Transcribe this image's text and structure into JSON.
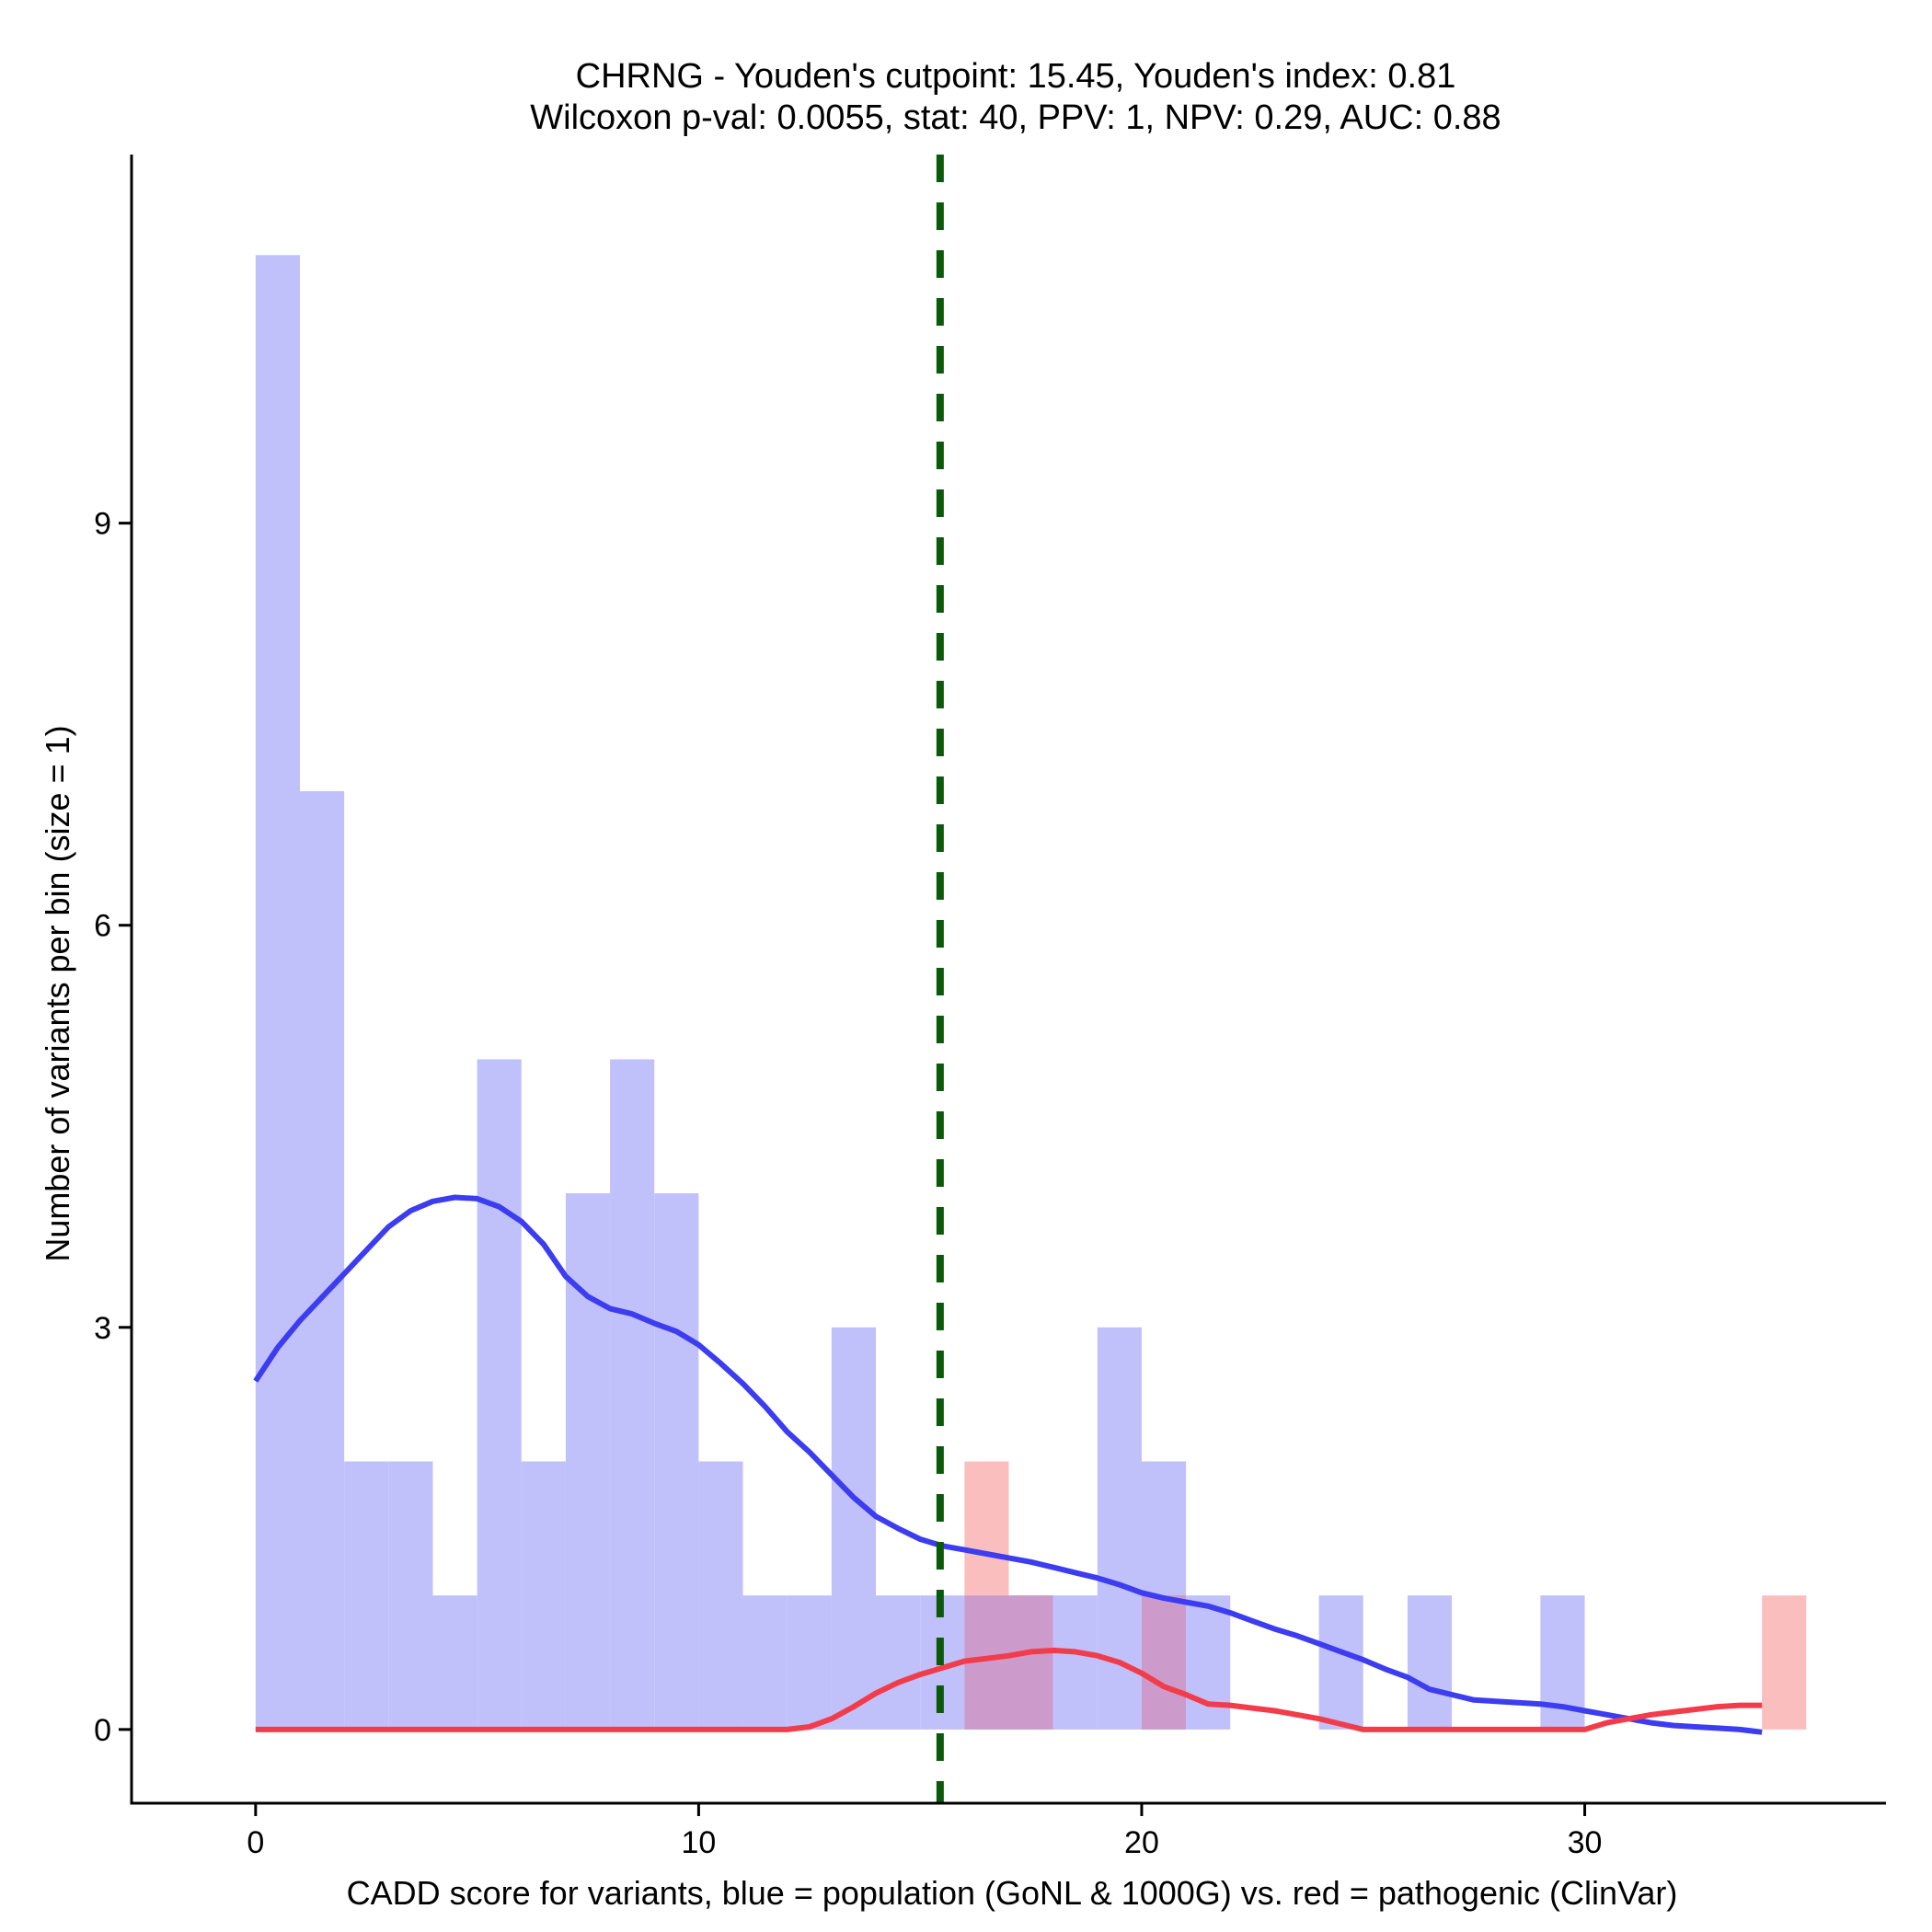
{
  "chart_data": {
    "type": "histogram",
    "title": "CHRNG - Youden's cutpoint: 15.45, Youden's index: 0.81",
    "subtitle": "Wilcoxon p-val: 0.0055, stat: 40, PPV: 1, NPV: 0.29, AUC: 0.88",
    "xlabel": "CADD score for variants, blue = population (GoNL & 1000G) vs. red = pathogenic (ClinVar)",
    "ylabel": "Number of variants per bin (size = 1)",
    "xlim": [
      -2.8,
      36.8
    ],
    "ylim": [
      -0.55,
      11.75
    ],
    "xticks": [
      0,
      10,
      20,
      30
    ],
    "yticks": [
      0,
      3,
      6,
      9
    ],
    "bin_size": 1,
    "cutpoint": 15.45,
    "colors": {
      "population_bar": "#c0c0fa",
      "pathogenic_bar": "#fbbebe",
      "overlap_bar": "#cc9acb",
      "population_line": "#3c3cf0",
      "pathogenic_line": "#f23c4a",
      "cutpoint_line": "#0b5a0b",
      "axis": "#000000"
    },
    "series": [
      {
        "name": "population (GoNL & 1000G)",
        "bins": [
          {
            "x0": 0,
            "x1": 1,
            "count": 11
          },
          {
            "x0": 1,
            "x1": 2,
            "count": 7
          },
          {
            "x0": 2,
            "x1": 3,
            "count": 2
          },
          {
            "x0": 3,
            "x1": 4,
            "count": 2
          },
          {
            "x0": 4,
            "x1": 5,
            "count": 1
          },
          {
            "x0": 5,
            "x1": 6,
            "count": 5
          },
          {
            "x0": 6,
            "x1": 7,
            "count": 2
          },
          {
            "x0": 7,
            "x1": 8,
            "count": 4
          },
          {
            "x0": 8,
            "x1": 9,
            "count": 5
          },
          {
            "x0": 9,
            "x1": 10,
            "count": 4
          },
          {
            "x0": 10,
            "x1": 11,
            "count": 2
          },
          {
            "x0": 11,
            "x1": 12,
            "count": 1
          },
          {
            "x0": 12,
            "x1": 13,
            "count": 1
          },
          {
            "x0": 13,
            "x1": 14,
            "count": 3
          },
          {
            "x0": 14,
            "x1": 15,
            "count": 1
          },
          {
            "x0": 15,
            "x1": 16,
            "count": 1
          },
          {
            "x0": 16,
            "x1": 17,
            "count": 1
          },
          {
            "x0": 17,
            "x1": 18,
            "count": 1
          },
          {
            "x0": 18,
            "x1": 19,
            "count": 1
          },
          {
            "x0": 19,
            "x1": 20,
            "count": 3
          },
          {
            "x0": 20,
            "x1": 21,
            "count": 2
          },
          {
            "x0": 21,
            "x1": 22,
            "count": 1
          },
          {
            "x0": 24,
            "x1": 25,
            "count": 1
          },
          {
            "x0": 26,
            "x1": 27,
            "count": 1
          },
          {
            "x0": 29,
            "x1": 30,
            "count": 1
          }
        ],
        "density": [
          [
            0,
            2.6
          ],
          [
            0.5,
            2.85
          ],
          [
            1,
            3.05
          ],
          [
            2,
            3.4
          ],
          [
            3,
            3.75
          ],
          [
            3.5,
            3.87
          ],
          [
            4,
            3.94
          ],
          [
            4.5,
            3.97
          ],
          [
            5,
            3.96
          ],
          [
            5.5,
            3.9
          ],
          [
            6,
            3.79
          ],
          [
            6.5,
            3.62
          ],
          [
            7,
            3.38
          ],
          [
            7.5,
            3.23
          ],
          [
            8,
            3.14
          ],
          [
            8.5,
            3.1
          ],
          [
            9,
            3.03
          ],
          [
            9.5,
            2.97
          ],
          [
            10,
            2.87
          ],
          [
            10.5,
            2.73
          ],
          [
            11,
            2.58
          ],
          [
            11.5,
            2.41
          ],
          [
            12,
            2.22
          ],
          [
            12.5,
            2.07
          ],
          [
            13,
            1.9
          ],
          [
            13.5,
            1.73
          ],
          [
            14,
            1.59
          ],
          [
            14.5,
            1.5
          ],
          [
            15,
            1.42
          ],
          [
            15.5,
            1.37
          ],
          [
            16,
            1.34
          ],
          [
            16.5,
            1.31
          ],
          [
            17,
            1.28
          ],
          [
            17.5,
            1.25
          ],
          [
            18,
            1.21
          ],
          [
            18.5,
            1.17
          ],
          [
            19,
            1.13
          ],
          [
            19.5,
            1.08
          ],
          [
            20,
            1.02
          ],
          [
            20.5,
            0.98
          ],
          [
            21,
            0.95
          ],
          [
            21.5,
            0.92
          ],
          [
            22,
            0.87
          ],
          [
            22.5,
            0.81
          ],
          [
            23,
            0.75
          ],
          [
            23.5,
            0.7
          ],
          [
            24,
            0.64
          ],
          [
            24.5,
            0.58
          ],
          [
            25,
            0.52
          ],
          [
            25.5,
            0.45
          ],
          [
            26,
            0.39
          ],
          [
            26.5,
            0.3
          ],
          [
            27,
            0.26
          ],
          [
            27.5,
            0.22
          ],
          [
            28,
            0.21
          ],
          [
            28.5,
            0.2
          ],
          [
            29,
            0.19
          ],
          [
            29.5,
            0.17
          ],
          [
            30,
            0.14
          ],
          [
            30.5,
            0.11
          ],
          [
            31,
            0.08
          ],
          [
            31.5,
            0.05
          ],
          [
            32,
            0.03
          ],
          [
            32.5,
            0.02
          ],
          [
            33,
            0.01
          ],
          [
            33.5,
            0.0
          ],
          [
            34,
            -0.02
          ]
        ]
      },
      {
        "name": "pathogenic (ClinVar)",
        "bins": [
          {
            "x0": 16,
            "x1": 17,
            "count": 2
          },
          {
            "x0": 17,
            "x1": 18,
            "count": 1
          },
          {
            "x0": 20,
            "x1": 21,
            "count": 1
          },
          {
            "x0": 34,
            "x1": 35,
            "count": 1
          }
        ],
        "density": [
          [
            0,
            0
          ],
          [
            12,
            0
          ],
          [
            12.5,
            0.02
          ],
          [
            13,
            0.08
          ],
          [
            13.5,
            0.17
          ],
          [
            14,
            0.27
          ],
          [
            14.5,
            0.35
          ],
          [
            15,
            0.41
          ],
          [
            15.5,
            0.46
          ],
          [
            16,
            0.51
          ],
          [
            16.5,
            0.53
          ],
          [
            17,
            0.55
          ],
          [
            17.5,
            0.58
          ],
          [
            18,
            0.59
          ],
          [
            18.5,
            0.58
          ],
          [
            19,
            0.55
          ],
          [
            19.5,
            0.5
          ],
          [
            20,
            0.42
          ],
          [
            20.5,
            0.32
          ],
          [
            21,
            0.26
          ],
          [
            21.5,
            0.19
          ],
          [
            22,
            0.18
          ],
          [
            22.5,
            0.16
          ],
          [
            23,
            0.14
          ],
          [
            23.5,
            0.11
          ],
          [
            24,
            0.08
          ],
          [
            24.5,
            0.04
          ],
          [
            25,
            0
          ],
          [
            30,
            0
          ],
          [
            30.5,
            0.05
          ],
          [
            31,
            0.08
          ],
          [
            31.5,
            0.11
          ],
          [
            32,
            0.13
          ],
          [
            32.5,
            0.15
          ],
          [
            33,
            0.17
          ],
          [
            33.5,
            0.18
          ],
          [
            34,
            0.18
          ]
        ]
      }
    ]
  }
}
